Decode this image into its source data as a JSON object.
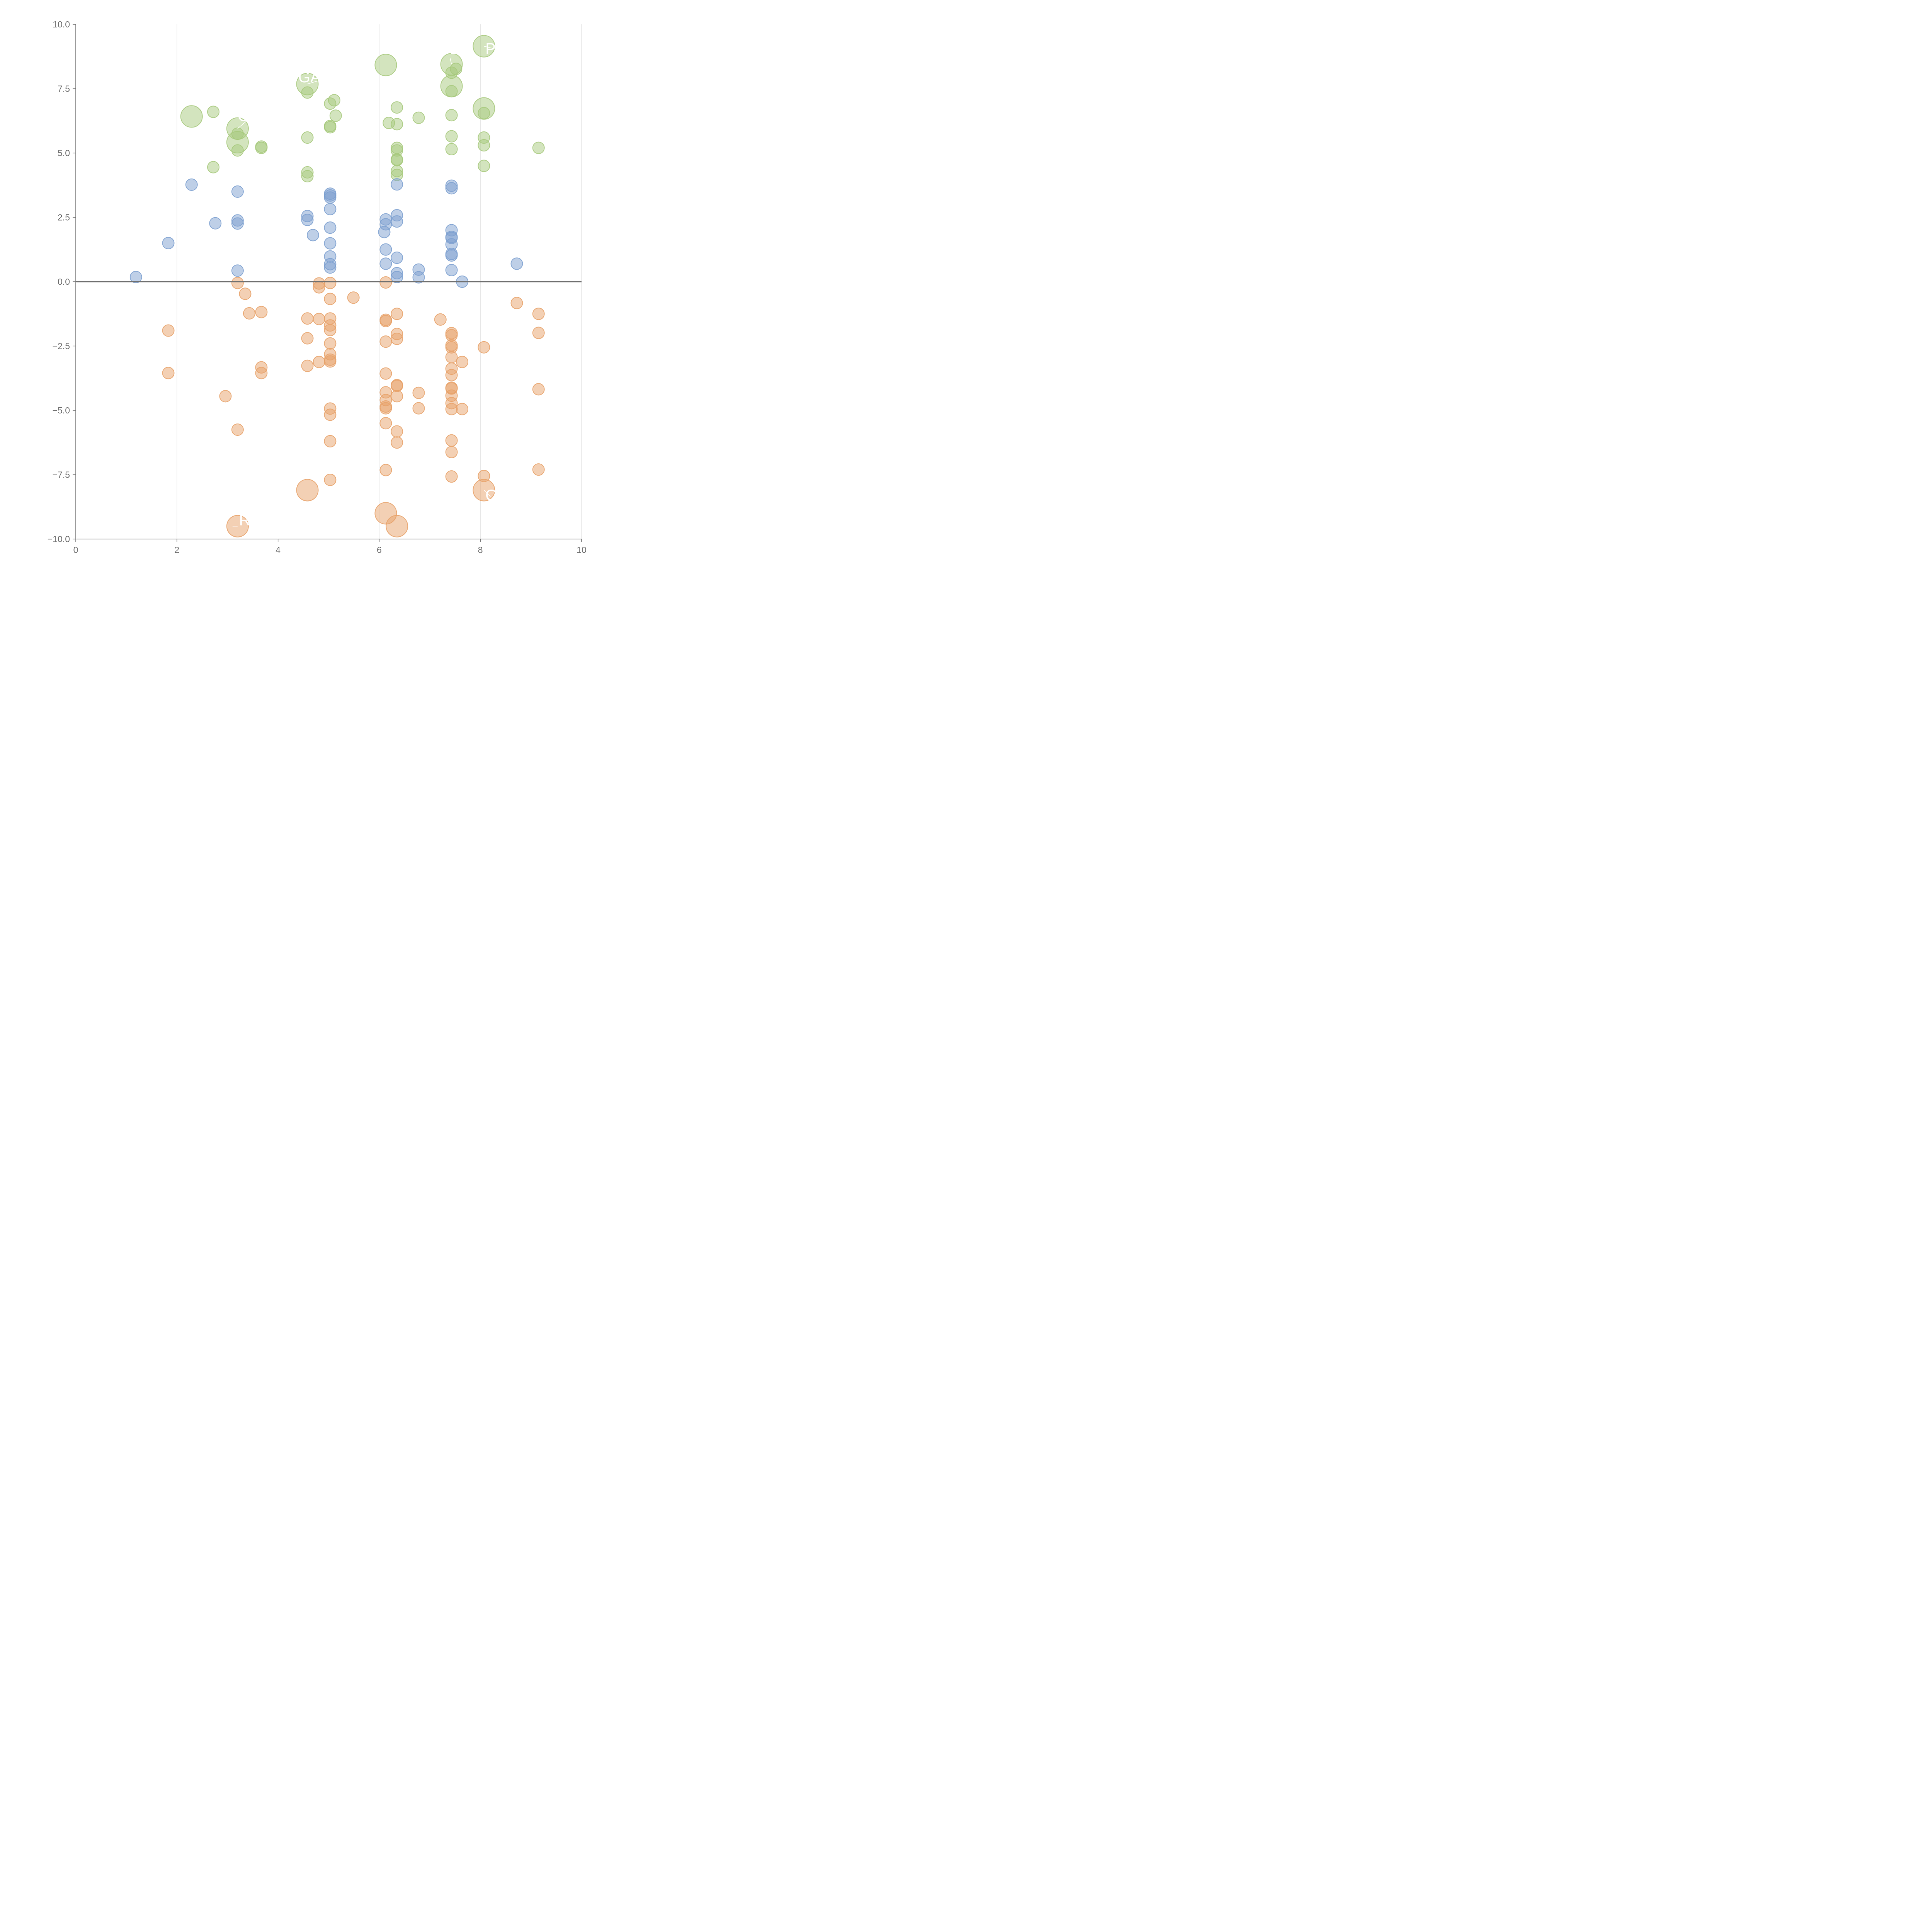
{
  "chart_data": {
    "type": "scatter",
    "title": "",
    "xlabel": "",
    "ylabel": "",
    "xlim": [
      0,
      10
    ],
    "ylim": [
      -10,
      10
    ],
    "grid": "vertical",
    "baseline_y": 0,
    "x_ticks": [
      0,
      2,
      4,
      6,
      8,
      10
    ],
    "x_tick_labels": [
      "0",
      "2",
      "4",
      "6",
      "8",
      "10"
    ],
    "y_ticks": [
      10,
      7.5,
      5,
      2.5,
      0,
      -2.5,
      -5,
      -7.5,
      -10
    ],
    "y_tick_labels": [
      "10.0",
      "7.5",
      "5.0",
      "2.5",
      "0.0",
      "−2.5",
      "−5.0",
      "−7.5",
      "−10.0"
    ],
    "colors": {
      "green": "#a7c97d",
      "blue": "#7da0d0",
      "orange": "#e8a26a",
      "axis": "#707070",
      "grid": "#dddddd",
      "baseline": "#707070"
    },
    "series": [
      {
        "name": "green",
        "color": "#a7c97d",
        "points": [
          [
            2.72,
            6.6
          ],
          [
            2.72,
            4.45
          ],
          [
            3.2,
            5.75
          ],
          [
            3.2,
            5.1
          ],
          [
            3.67,
            5.25
          ],
          [
            3.67,
            5.2
          ],
          [
            4.58,
            7.35
          ],
          [
            4.58,
            5.6
          ],
          [
            4.58,
            4.25
          ],
          [
            4.58,
            4.1
          ],
          [
            5.03,
            6.92
          ],
          [
            5.03,
            6.05
          ],
          [
            5.03,
            6.0
          ],
          [
            5.11,
            7.05
          ],
          [
            5.14,
            6.45
          ],
          [
            6.19,
            6.17
          ],
          [
            6.35,
            6.77
          ],
          [
            6.35,
            6.12
          ],
          [
            6.35,
            5.2
          ],
          [
            6.35,
            5.1
          ],
          [
            6.35,
            4.75
          ],
          [
            6.35,
            4.72
          ],
          [
            6.35,
            4.3
          ],
          [
            6.35,
            4.15
          ],
          [
            6.78,
            6.37
          ],
          [
            7.43,
            8.12
          ],
          [
            7.43,
            7.4
          ],
          [
            7.43,
            6.47
          ],
          [
            7.43,
            5.65
          ],
          [
            7.43,
            5.15
          ],
          [
            7.52,
            8.27
          ],
          [
            8.07,
            6.55
          ],
          [
            8.07,
            5.6
          ],
          [
            8.07,
            5.3
          ],
          [
            8.07,
            4.5
          ],
          [
            9.15,
            5.2
          ]
        ],
        "large_points": [
          [
            2.29,
            6.42
          ],
          [
            3.2,
            5.95
          ],
          [
            3.2,
            5.42
          ],
          [
            4.58,
            7.68
          ],
          [
            6.13,
            8.42
          ],
          [
            7.43,
            8.45
          ],
          [
            7.43,
            7.6
          ],
          [
            8.07,
            9.15
          ],
          [
            8.07,
            6.73
          ]
        ]
      },
      {
        "name": "blue",
        "color": "#7da0d0",
        "points": [
          [
            1.19,
            0.18
          ],
          [
            1.83,
            1.5
          ],
          [
            2.29,
            3.77
          ],
          [
            2.76,
            2.27
          ],
          [
            3.2,
            3.5
          ],
          [
            3.2,
            2.38
          ],
          [
            3.2,
            2.26
          ],
          [
            3.2,
            0.43
          ],
          [
            4.58,
            2.55
          ],
          [
            4.58,
            2.4
          ],
          [
            4.69,
            1.81
          ],
          [
            5.03,
            3.42
          ],
          [
            5.03,
            3.35
          ],
          [
            5.03,
            3.27
          ],
          [
            5.03,
            2.82
          ],
          [
            5.03,
            2.1
          ],
          [
            5.03,
            1.49
          ],
          [
            5.03,
            0.98
          ],
          [
            5.03,
            0.68
          ],
          [
            5.03,
            0.55
          ],
          [
            6.1,
            1.93
          ],
          [
            6.13,
            2.42
          ],
          [
            6.13,
            2.23
          ],
          [
            6.13,
            1.25
          ],
          [
            6.13,
            0.7
          ],
          [
            6.35,
            3.78
          ],
          [
            6.35,
            2.58
          ],
          [
            6.35,
            2.34
          ],
          [
            6.35,
            0.93
          ],
          [
            6.35,
            0.33
          ],
          [
            6.35,
            0.18
          ],
          [
            6.78,
            0.47
          ],
          [
            6.78,
            0.17
          ],
          [
            7.43,
            3.73
          ],
          [
            7.43,
            3.63
          ],
          [
            7.43,
            2.0
          ],
          [
            7.43,
            1.74
          ],
          [
            7.43,
            1.7
          ],
          [
            7.43,
            1.45
          ],
          [
            7.43,
            1.08
          ],
          [
            7.43,
            1.02
          ],
          [
            7.43,
            0.45
          ],
          [
            7.64,
            0.0
          ],
          [
            8.72,
            0.7
          ]
        ],
        "large_points": []
      },
      {
        "name": "orange",
        "color": "#e8a26a",
        "points": [
          [
            1.83,
            -1.9
          ],
          [
            1.83,
            -3.55
          ],
          [
            2.96,
            -4.45
          ],
          [
            3.2,
            -0.05
          ],
          [
            3.2,
            -5.75
          ],
          [
            3.35,
            -0.47
          ],
          [
            3.43,
            -1.23
          ],
          [
            3.67,
            -1.18
          ],
          [
            3.67,
            -3.33
          ],
          [
            3.67,
            -3.55
          ],
          [
            4.58,
            -1.43
          ],
          [
            4.58,
            -2.2
          ],
          [
            4.58,
            -3.27
          ],
          [
            4.81,
            -0.07
          ],
          [
            4.81,
            -0.22
          ],
          [
            4.81,
            -1.45
          ],
          [
            4.81,
            -3.12
          ],
          [
            5.03,
            -0.05
          ],
          [
            5.03,
            -0.67
          ],
          [
            5.03,
            -1.43
          ],
          [
            5.03,
            -1.7
          ],
          [
            5.03,
            -1.88
          ],
          [
            5.03,
            -2.4
          ],
          [
            5.03,
            -2.82
          ],
          [
            5.03,
            -3.03
          ],
          [
            5.03,
            -3.1
          ],
          [
            5.03,
            -4.93
          ],
          [
            5.03,
            -5.17
          ],
          [
            5.03,
            -6.2
          ],
          [
            5.03,
            -7.7
          ],
          [
            5.49,
            -0.62
          ],
          [
            6.13,
            -0.03
          ],
          [
            6.13,
            -1.48
          ],
          [
            6.13,
            -1.53
          ],
          [
            6.13,
            -2.33
          ],
          [
            6.13,
            -3.57
          ],
          [
            6.13,
            -4.3
          ],
          [
            6.13,
            -4.6
          ],
          [
            6.13,
            -4.85
          ],
          [
            6.13,
            -4.92
          ],
          [
            6.13,
            -5.5
          ],
          [
            6.13,
            -7.32
          ],
          [
            6.35,
            -1.25
          ],
          [
            6.35,
            -2.03
          ],
          [
            6.35,
            -2.22
          ],
          [
            6.35,
            -4.02
          ],
          [
            6.35,
            -4.05
          ],
          [
            6.35,
            -4.45
          ],
          [
            6.35,
            -5.82
          ],
          [
            6.35,
            -6.25
          ],
          [
            6.78,
            -4.32
          ],
          [
            6.78,
            -4.92
          ],
          [
            7.21,
            -1.47
          ],
          [
            7.43,
            -2.0
          ],
          [
            7.43,
            -2.08
          ],
          [
            7.43,
            -2.47
          ],
          [
            7.43,
            -2.55
          ],
          [
            7.43,
            -2.93
          ],
          [
            7.43,
            -3.38
          ],
          [
            7.43,
            -3.63
          ],
          [
            7.43,
            -4.12
          ],
          [
            7.43,
            -4.15
          ],
          [
            7.43,
            -4.43
          ],
          [
            7.43,
            -4.72
          ],
          [
            7.43,
            -4.95
          ],
          [
            7.43,
            -6.17
          ],
          [
            7.43,
            -6.62
          ],
          [
            7.43,
            -7.57
          ],
          [
            7.64,
            -3.12
          ],
          [
            7.64,
            -4.95
          ],
          [
            8.07,
            -2.55
          ],
          [
            8.07,
            -7.55
          ],
          [
            8.72,
            -0.83
          ],
          [
            9.15,
            -1.25
          ],
          [
            9.15,
            -1.99
          ],
          [
            9.15,
            -4.18
          ],
          [
            9.15,
            -7.3
          ]
        ],
        "large_points": [
          [
            4.58,
            -8.1
          ],
          [
            3.2,
            -9.5
          ],
          [
            6.13,
            -9.0
          ],
          [
            6.35,
            -9.5
          ],
          [
            8.07,
            -8.1
          ]
        ]
      }
    ],
    "annotations": [
      {
        "text": "GA",
        "x": 4.4,
        "y": 7.75,
        "from": [
          4.58,
          7.68
        ],
        "to": [
          4.95,
          7.9
        ]
      },
      {
        "text": "R",
        "x": 3.23,
        "y": -9.47,
        "from": [
          3.2,
          -9.5
        ],
        "to": [
          3.1,
          -9.5
        ]
      },
      {
        "text": "BE",
        "x": 7.4,
        "y": 8.85,
        "from": [
          7.43,
          8.45
        ],
        "to": [
          7.4,
          8.7
        ]
      },
      {
        "text": "P",
        "x": 8.1,
        "y": 8.85,
        "from": [
          8.07,
          9.15
        ],
        "to": [
          8.28,
          9.05
        ]
      },
      {
        "text": "C",
        "x": 3.2,
        "y": 6.25,
        "from": [
          3.2,
          5.95
        ],
        "to": [
          3.38,
          6.25
        ]
      },
      {
        "text": "O",
        "x": 8.1,
        "y": -8.5,
        "from": [
          8.07,
          -8.1
        ],
        "to": [
          8.2,
          -8.35
        ]
      }
    ]
  }
}
